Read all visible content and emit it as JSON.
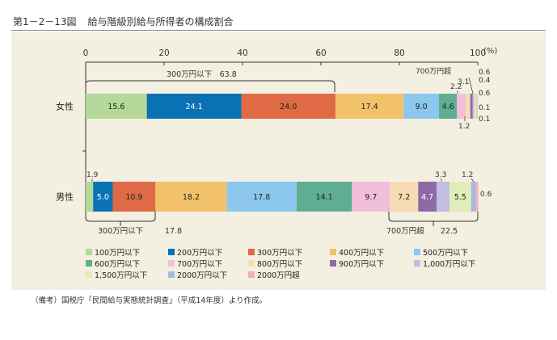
{
  "figure": {
    "number": "第1－2－13図",
    "title": "給与階級別給与所得者の構成割合",
    "source": "（備考）国税庁「民間給与実態統計調査」（平成14年度）より作成。"
  },
  "chart_data": {
    "type": "bar",
    "orientation": "horizontal",
    "stacked": true,
    "x_axis": {
      "min": 0,
      "max": 100,
      "ticks": [
        0,
        20,
        40,
        60,
        80,
        100
      ],
      "unit": "(%)"
    },
    "categories": [
      "女性",
      "男性"
    ],
    "series": [
      {
        "name": "100万円以下",
        "color": "#b5d89b",
        "values": [
          15.6,
          1.9
        ]
      },
      {
        "name": "200万円以下",
        "color": "#0a72b4",
        "values": [
          24.1,
          5.0
        ]
      },
      {
        "name": "300万円以下",
        "color": "#e06a45",
        "values": [
          24.0,
          10.9
        ]
      },
      {
        "name": "400万円以下",
        "color": "#f2c26b",
        "values": [
          17.4,
          18.2
        ]
      },
      {
        "name": "500万円以下",
        "color": "#8cc7ed",
        "values": [
          9.0,
          17.8
        ]
      },
      {
        "name": "600万円以下",
        "color": "#5fae92",
        "values": [
          4.6,
          14.1
        ]
      },
      {
        "name": "700万円以下",
        "color": "#f2bfda",
        "values": [
          2.2,
          9.7
        ]
      },
      {
        "name": "800万円以下",
        "color": "#f6dbb4",
        "values": [
          1.2,
          7.2
        ]
      },
      {
        "name": "900万円以下",
        "color": "#8c6aa8",
        "values": [
          0.6,
          4.7
        ]
      },
      {
        "name": "1,000万円以下",
        "color": "#c3bde0",
        "values": [
          0.4,
          3.3
        ]
      },
      {
        "name": "1,500万円以下",
        "color": "#e1edb9",
        "values": [
          0.6,
          5.5
        ]
      },
      {
        "name": "2000万円以下",
        "color": "#a7b9dd",
        "values": [
          0.1,
          1.2
        ]
      },
      {
        "name": "2000万円超",
        "color": "#f1b0bd",
        "values": [
          0.1,
          0.6
        ]
      }
    ],
    "segment_labels": [
      {
        "row": 0,
        "series": 0,
        "text": "15.6"
      },
      {
        "row": 0,
        "series": 1,
        "text": "24.1"
      },
      {
        "row": 0,
        "series": 2,
        "text": "24.0"
      },
      {
        "row": 0,
        "series": 3,
        "text": "17.4"
      },
      {
        "row": 0,
        "series": 4,
        "text": "9.0"
      },
      {
        "row": 0,
        "series": 5,
        "text": "4.6"
      },
      {
        "row": 1,
        "series": 1,
        "text": "5.0"
      },
      {
        "row": 1,
        "series": 2,
        "text": "10.9"
      },
      {
        "row": 1,
        "series": 3,
        "text": "18.2"
      },
      {
        "row": 1,
        "series": 4,
        "text": "17.8"
      },
      {
        "row": 1,
        "series": 5,
        "text": "14.1"
      },
      {
        "row": 1,
        "series": 6,
        "text": "9.7"
      },
      {
        "row": 1,
        "series": 7,
        "text": "7.2"
      },
      {
        "row": 1,
        "series": 8,
        "text": "4.7"
      },
      {
        "row": 1,
        "series": 10,
        "text": "5.5"
      }
    ],
    "outside_labels": {
      "female_2_2": "2.2",
      "female_1_2": "1.2",
      "female_3_1": "3.1",
      "female_right": [
        "0.6",
        "0.4",
        "0.6",
        "0.1",
        "0.1"
      ],
      "male_1_9": "1.9",
      "male_3_3": "3.3",
      "male_1_2": "1.2",
      "male_0_6": "0.6"
    },
    "annotations": {
      "female_300_label": "300万円以下　63.8",
      "female_700_over": "700万円超",
      "male_300_label": "300万円以下",
      "male_300_value": "17.8",
      "male_700_label": "700万円超",
      "male_700_value": "22.5"
    }
  }
}
